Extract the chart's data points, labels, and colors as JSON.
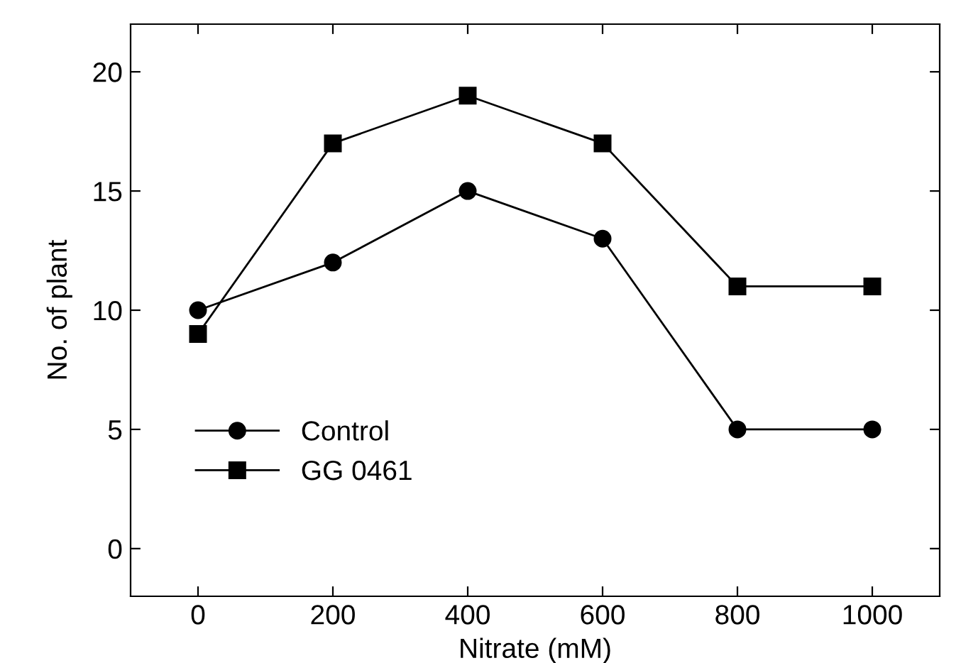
{
  "chart_data": {
    "type": "line",
    "xlabel": "Nitrate (mM)",
    "ylabel": "No. of plant",
    "x": [
      0,
      200,
      400,
      600,
      800,
      1000
    ],
    "series": [
      {
        "name": "Control",
        "color": "#000000",
        "marker": "circle",
        "values": [
          10,
          12,
          15,
          13,
          5,
          5
        ]
      },
      {
        "name": "GG 0461",
        "color": "#000000",
        "marker": "square",
        "values": [
          9,
          17,
          19,
          17,
          11,
          11
        ]
      }
    ],
    "xlim": [
      -100,
      1100
    ],
    "ylim": [
      -2,
      22
    ],
    "xticks": [
      0,
      200,
      400,
      600,
      800,
      1000
    ],
    "yticks": [
      0,
      5,
      10,
      15,
      20
    ],
    "grid": false,
    "legend": "bottom left",
    "line_style": "solid"
  }
}
